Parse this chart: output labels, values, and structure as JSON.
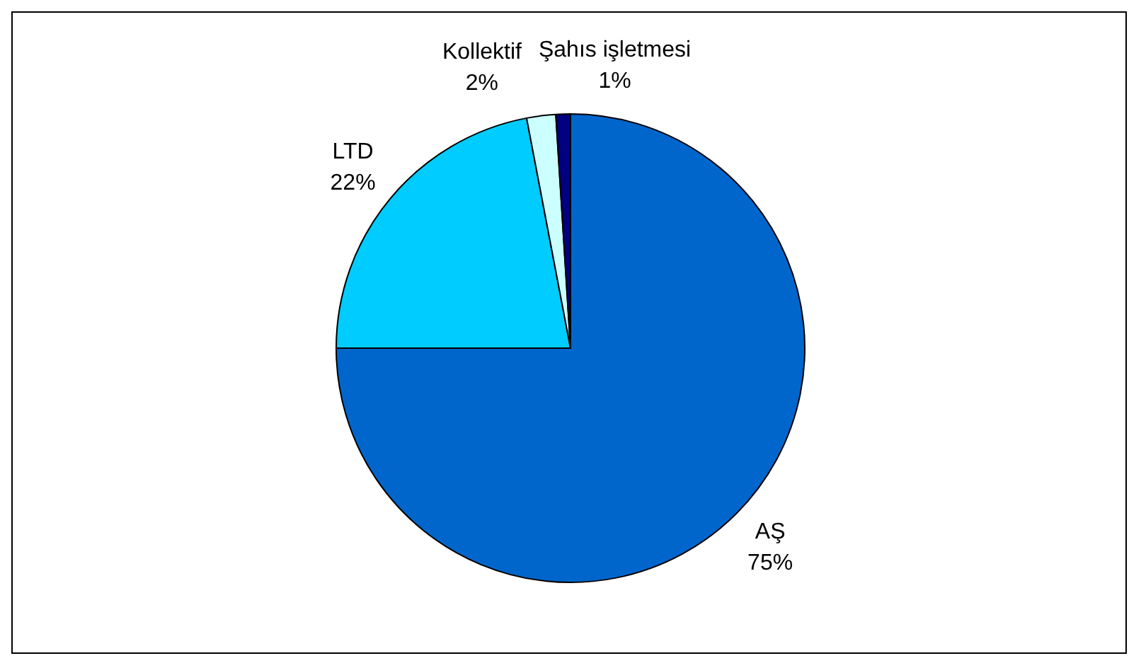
{
  "chart_data": {
    "type": "pie",
    "categories": [
      "AŞ",
      "LTD",
      "Kollektif",
      "Şahıs işletmesi"
    ],
    "values": [
      75,
      22,
      2,
      1
    ],
    "value_labels": [
      "75%",
      "22%",
      "2%",
      "1%"
    ],
    "colors": [
      "#0066cc",
      "#00ccff",
      "#ccffff",
      "#000080"
    ],
    "legend": false
  }
}
